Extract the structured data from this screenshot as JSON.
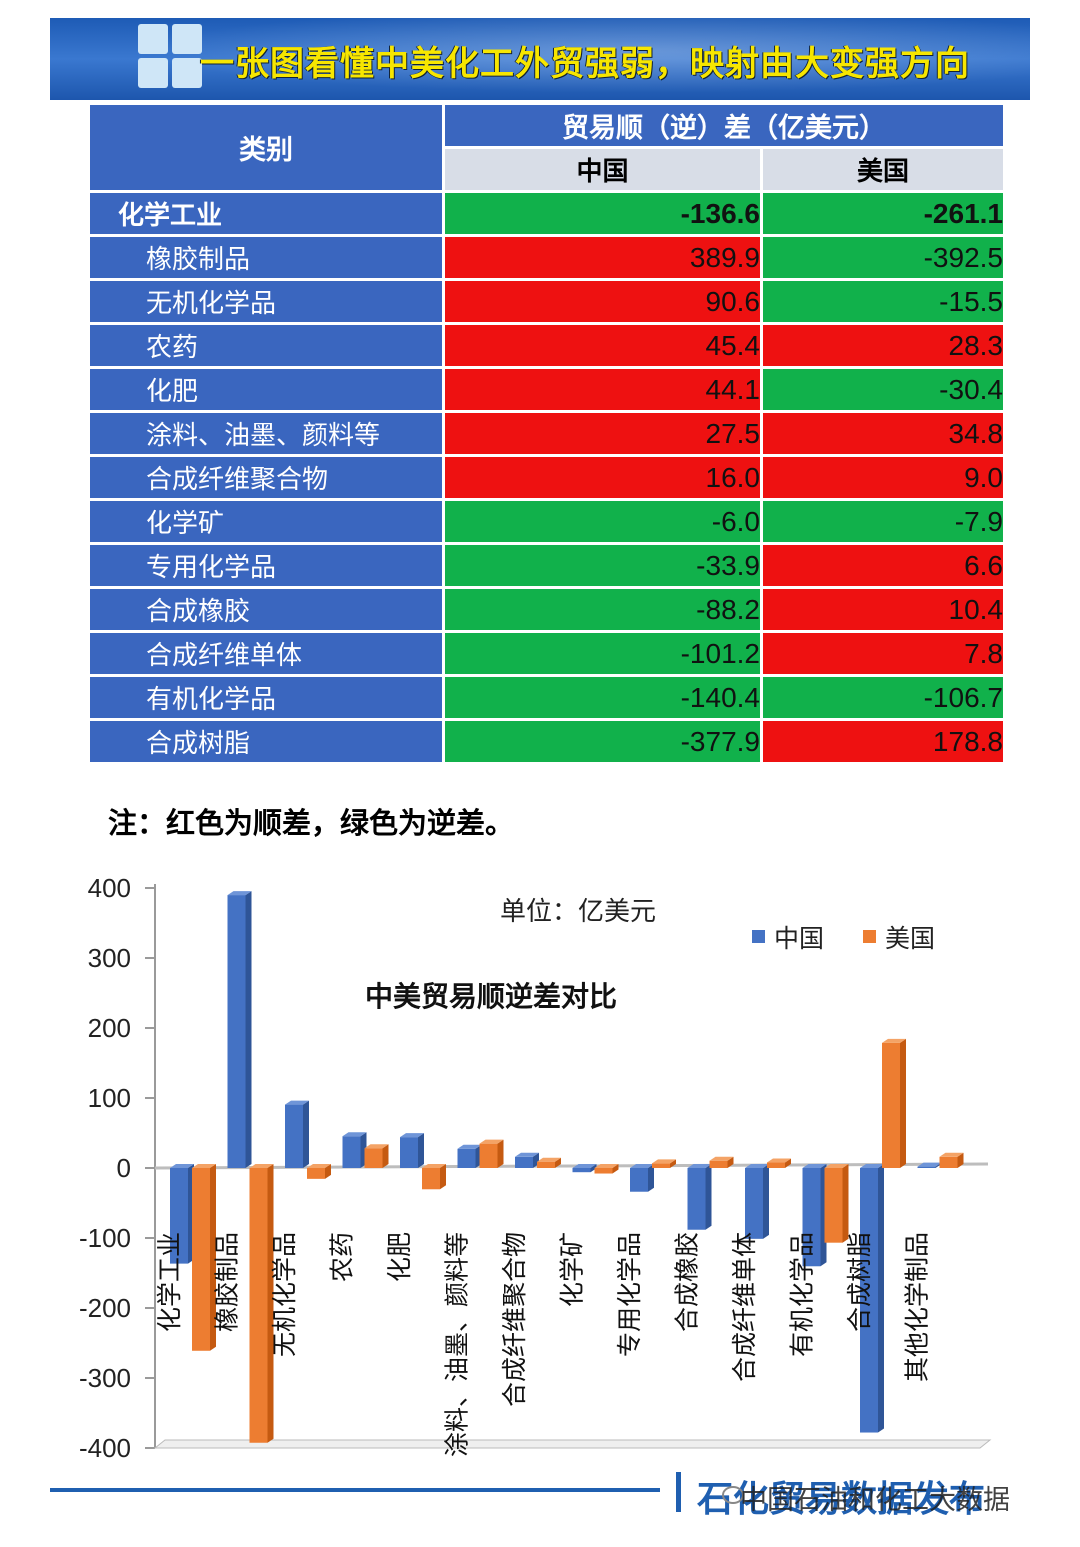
{
  "banner": {
    "title": "一张图看懂中美化工外贸强弱，映射由大变强方向"
  },
  "table": {
    "header_category": "类别",
    "header_group": "贸易顺（逆）差（亿美元）",
    "header_china": "中国",
    "header_usa": "美国",
    "rows": [
      {
        "category": "化学工业",
        "china": "-136.6",
        "usa": "-261.1"
      },
      {
        "category": "橡胶制品",
        "china": "389.9",
        "usa": "-392.5"
      },
      {
        "category": "无机化学品",
        "china": "90.6",
        "usa": "-15.5"
      },
      {
        "category": "农药",
        "china": "45.4",
        "usa": "28.3"
      },
      {
        "category": "化肥",
        "china": "44.1",
        "usa": "-30.4"
      },
      {
        "category": "涂料、油墨、颜料等",
        "china": "27.5",
        "usa": "34.8"
      },
      {
        "category": "合成纤维聚合物",
        "china": "16.0",
        "usa": "9.0"
      },
      {
        "category": "化学矿",
        "china": "-6.0",
        "usa": "-7.9"
      },
      {
        "category": "专用化学品",
        "china": "-33.9",
        "usa": "6.6"
      },
      {
        "category": "合成橡胶",
        "china": "-88.2",
        "usa": "10.4"
      },
      {
        "category": "合成纤维单体",
        "china": "-101.2",
        "usa": "7.8"
      },
      {
        "category": "有机化学品",
        "china": "-140.4",
        "usa": "-106.7"
      },
      {
        "category": "合成树脂",
        "china": "-377.9",
        "usa": "178.8"
      }
    ],
    "color_positive": "#ee1111",
    "color_negative": "#11b14b"
  },
  "note": "注：红色为顺差，绿色为逆差。",
  "chart_data": {
    "type": "bar",
    "title": "中美贸易顺逆差对比",
    "unit_label": "单位：亿美元",
    "categories": [
      "化学工业",
      "橡胶制品",
      "无机化学品",
      "农药",
      "化肥",
      "涂料、油墨、颜料等",
      "合成纤维聚合物",
      "化学矿",
      "专用化学品",
      "合成橡胶",
      "合成纤维单体",
      "有机化学品",
      "合成树脂",
      "其他化学制品"
    ],
    "series": [
      {
        "name": "中国",
        "color": "#4472c4",
        "values": [
          -136.6,
          389.9,
          90.6,
          45.4,
          44.1,
          27.5,
          16.0,
          -6.0,
          -33.9,
          -88.2,
          -101.2,
          -140.4,
          -377.9,
          2
        ]
      },
      {
        "name": "美国",
        "color": "#ed7d31",
        "values": [
          -261.1,
          -392.5,
          -15.5,
          28.3,
          -30.4,
          34.8,
          9.0,
          -7.9,
          6.6,
          10.4,
          7.8,
          -106.7,
          178.8,
          16
        ]
      }
    ],
    "ylim": [
      -400,
      400
    ],
    "yticks": [
      "400",
      "300",
      "200",
      "100",
      "0",
      "-100",
      "-200",
      "-300",
      "-400"
    ],
    "legend_position": "top-right"
  },
  "footer": {
    "brand": "石化贸易数据发布",
    "watermark": "中国石油和化工大数据"
  }
}
